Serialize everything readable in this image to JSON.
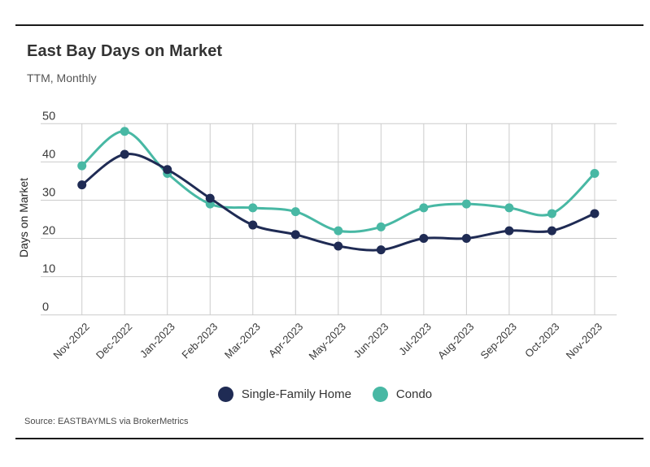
{
  "header": {
    "title": "East Bay Days on Market",
    "subtitle": "TTM, Monthly"
  },
  "footer": {
    "source": "Source:  EASTBAYMLS via BrokerMetrics"
  },
  "colors": {
    "single_family": "#1f2b54",
    "condo": "#48b8a4",
    "gridline": "#cccccc",
    "axis_text": "#3a3a3a",
    "rule": "#1a1a1a"
  },
  "chart_data": {
    "type": "line",
    "title": "East Bay Days on Market",
    "subtitle": "TTM, Monthly",
    "xlabel": "",
    "ylabel": "Days on Market",
    "ylim": [
      0,
      50
    ],
    "yticks": [
      0,
      10,
      20,
      30,
      40,
      50
    ],
    "grid": true,
    "legend_position": "bottom",
    "point_markers": true,
    "categories": [
      "Nov-2022",
      "Dec-2022",
      "Jan-2023",
      "Feb-2023",
      "Mar-2023",
      "Apr-2023",
      "May-2023",
      "Jun-2023",
      "Jul-2023",
      "Aug-2023",
      "Sep-2023",
      "Oct-2023",
      "Nov-2023"
    ],
    "series": [
      {
        "name": "Single-Family Home",
        "color": "#1f2b54",
        "values": [
          34,
          42,
          38,
          30.5,
          23.5,
          21,
          18,
          17,
          20,
          20,
          22,
          22,
          26.5
        ]
      },
      {
        "name": "Condo",
        "color": "#48b8a4",
        "values": [
          39,
          48,
          37,
          29,
          28,
          27,
          22,
          23,
          28,
          29,
          28,
          26.5,
          37
        ]
      }
    ]
  }
}
